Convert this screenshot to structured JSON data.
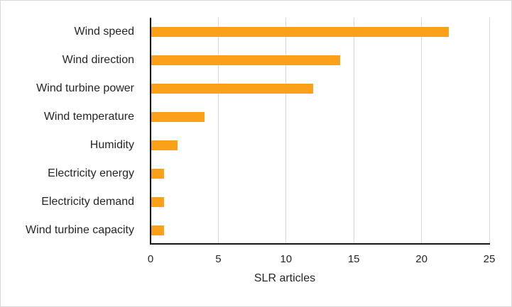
{
  "chart_data": {
    "type": "bar",
    "orientation": "horizontal",
    "categories": [
      "Wind speed",
      "Wind direction",
      "Wind turbine power",
      "Wind temperature",
      "Humidity",
      "Electricity energy",
      "Electricity demand",
      "Wind turbine capacity"
    ],
    "values": [
      22,
      14,
      12,
      4,
      2,
      1,
      1,
      1
    ],
    "title": "",
    "xlabel": "SLR articles",
    "ylabel": "",
    "xlim": [
      0,
      25
    ],
    "xticks": [
      0,
      5,
      10,
      15,
      20,
      25
    ],
    "grid": true,
    "legend_position": "none",
    "bar_color": "#FAA019",
    "gridline_color": "#D9D9D9",
    "axis_line_color": "#161616",
    "text_color": "#262626"
  },
  "frame": {
    "background": "#FFFFFF",
    "border_color": "#D9D9D9"
  }
}
